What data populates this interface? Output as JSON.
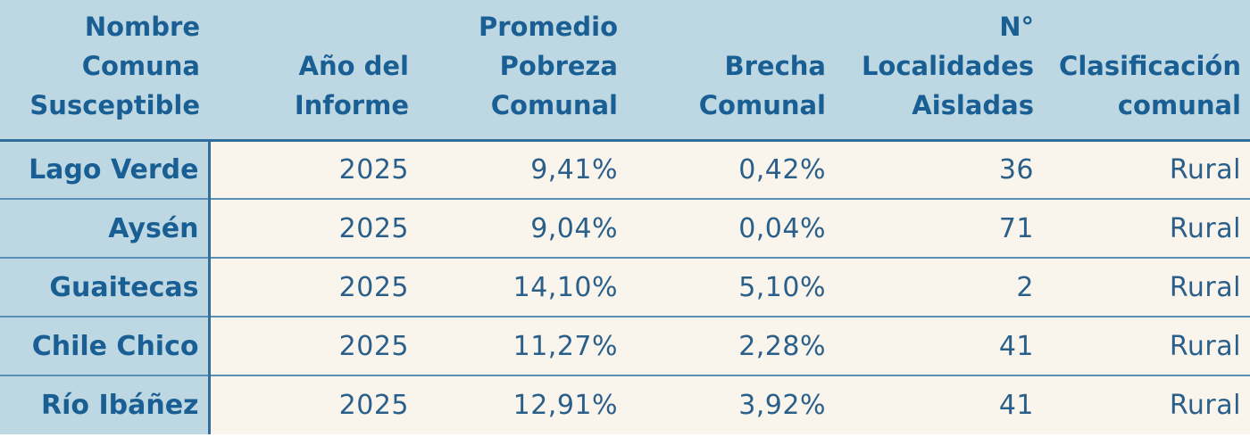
{
  "table": {
    "headers": [
      "Nombre Comuna Susceptible",
      "Año del Informe",
      "Promedio Pobreza Comunal",
      "Brecha Comunal",
      "N° Localidades Aisladas",
      "Clasificación comunal"
    ],
    "rows": [
      {
        "comuna": "Lago Verde",
        "anio": "2025",
        "pobreza": "9,41%",
        "brecha": "0,42%",
        "localidades": "36",
        "clasificacion": "Rural"
      },
      {
        "comuna": "Aysén",
        "anio": "2025",
        "pobreza": "9,04%",
        "brecha": "0,04%",
        "localidades": "71",
        "clasificacion": "Rural"
      },
      {
        "comuna": "Guaitecas",
        "anio": "2025",
        "pobreza": "14,10%",
        "brecha": "5,10%",
        "localidades": "2",
        "clasificacion": "Rural"
      },
      {
        "comuna": "Chile Chico",
        "anio": "2025",
        "pobreza": "11,27%",
        "brecha": "2,28%",
        "localidades": "41",
        "clasificacion": "Rural"
      },
      {
        "comuna": "Río Ibáñez",
        "anio": "2025",
        "pobreza": "12,91%",
        "brecha": "3,92%",
        "localidades": "41",
        "clasificacion": "Rural"
      }
    ]
  },
  "colors": {
    "header_bg": "#bdd8e3",
    "header_text": "#1a5f94",
    "body_bg": "#f9f5ec",
    "body_text": "#2a5f8a",
    "border": "#2f6e9b"
  }
}
